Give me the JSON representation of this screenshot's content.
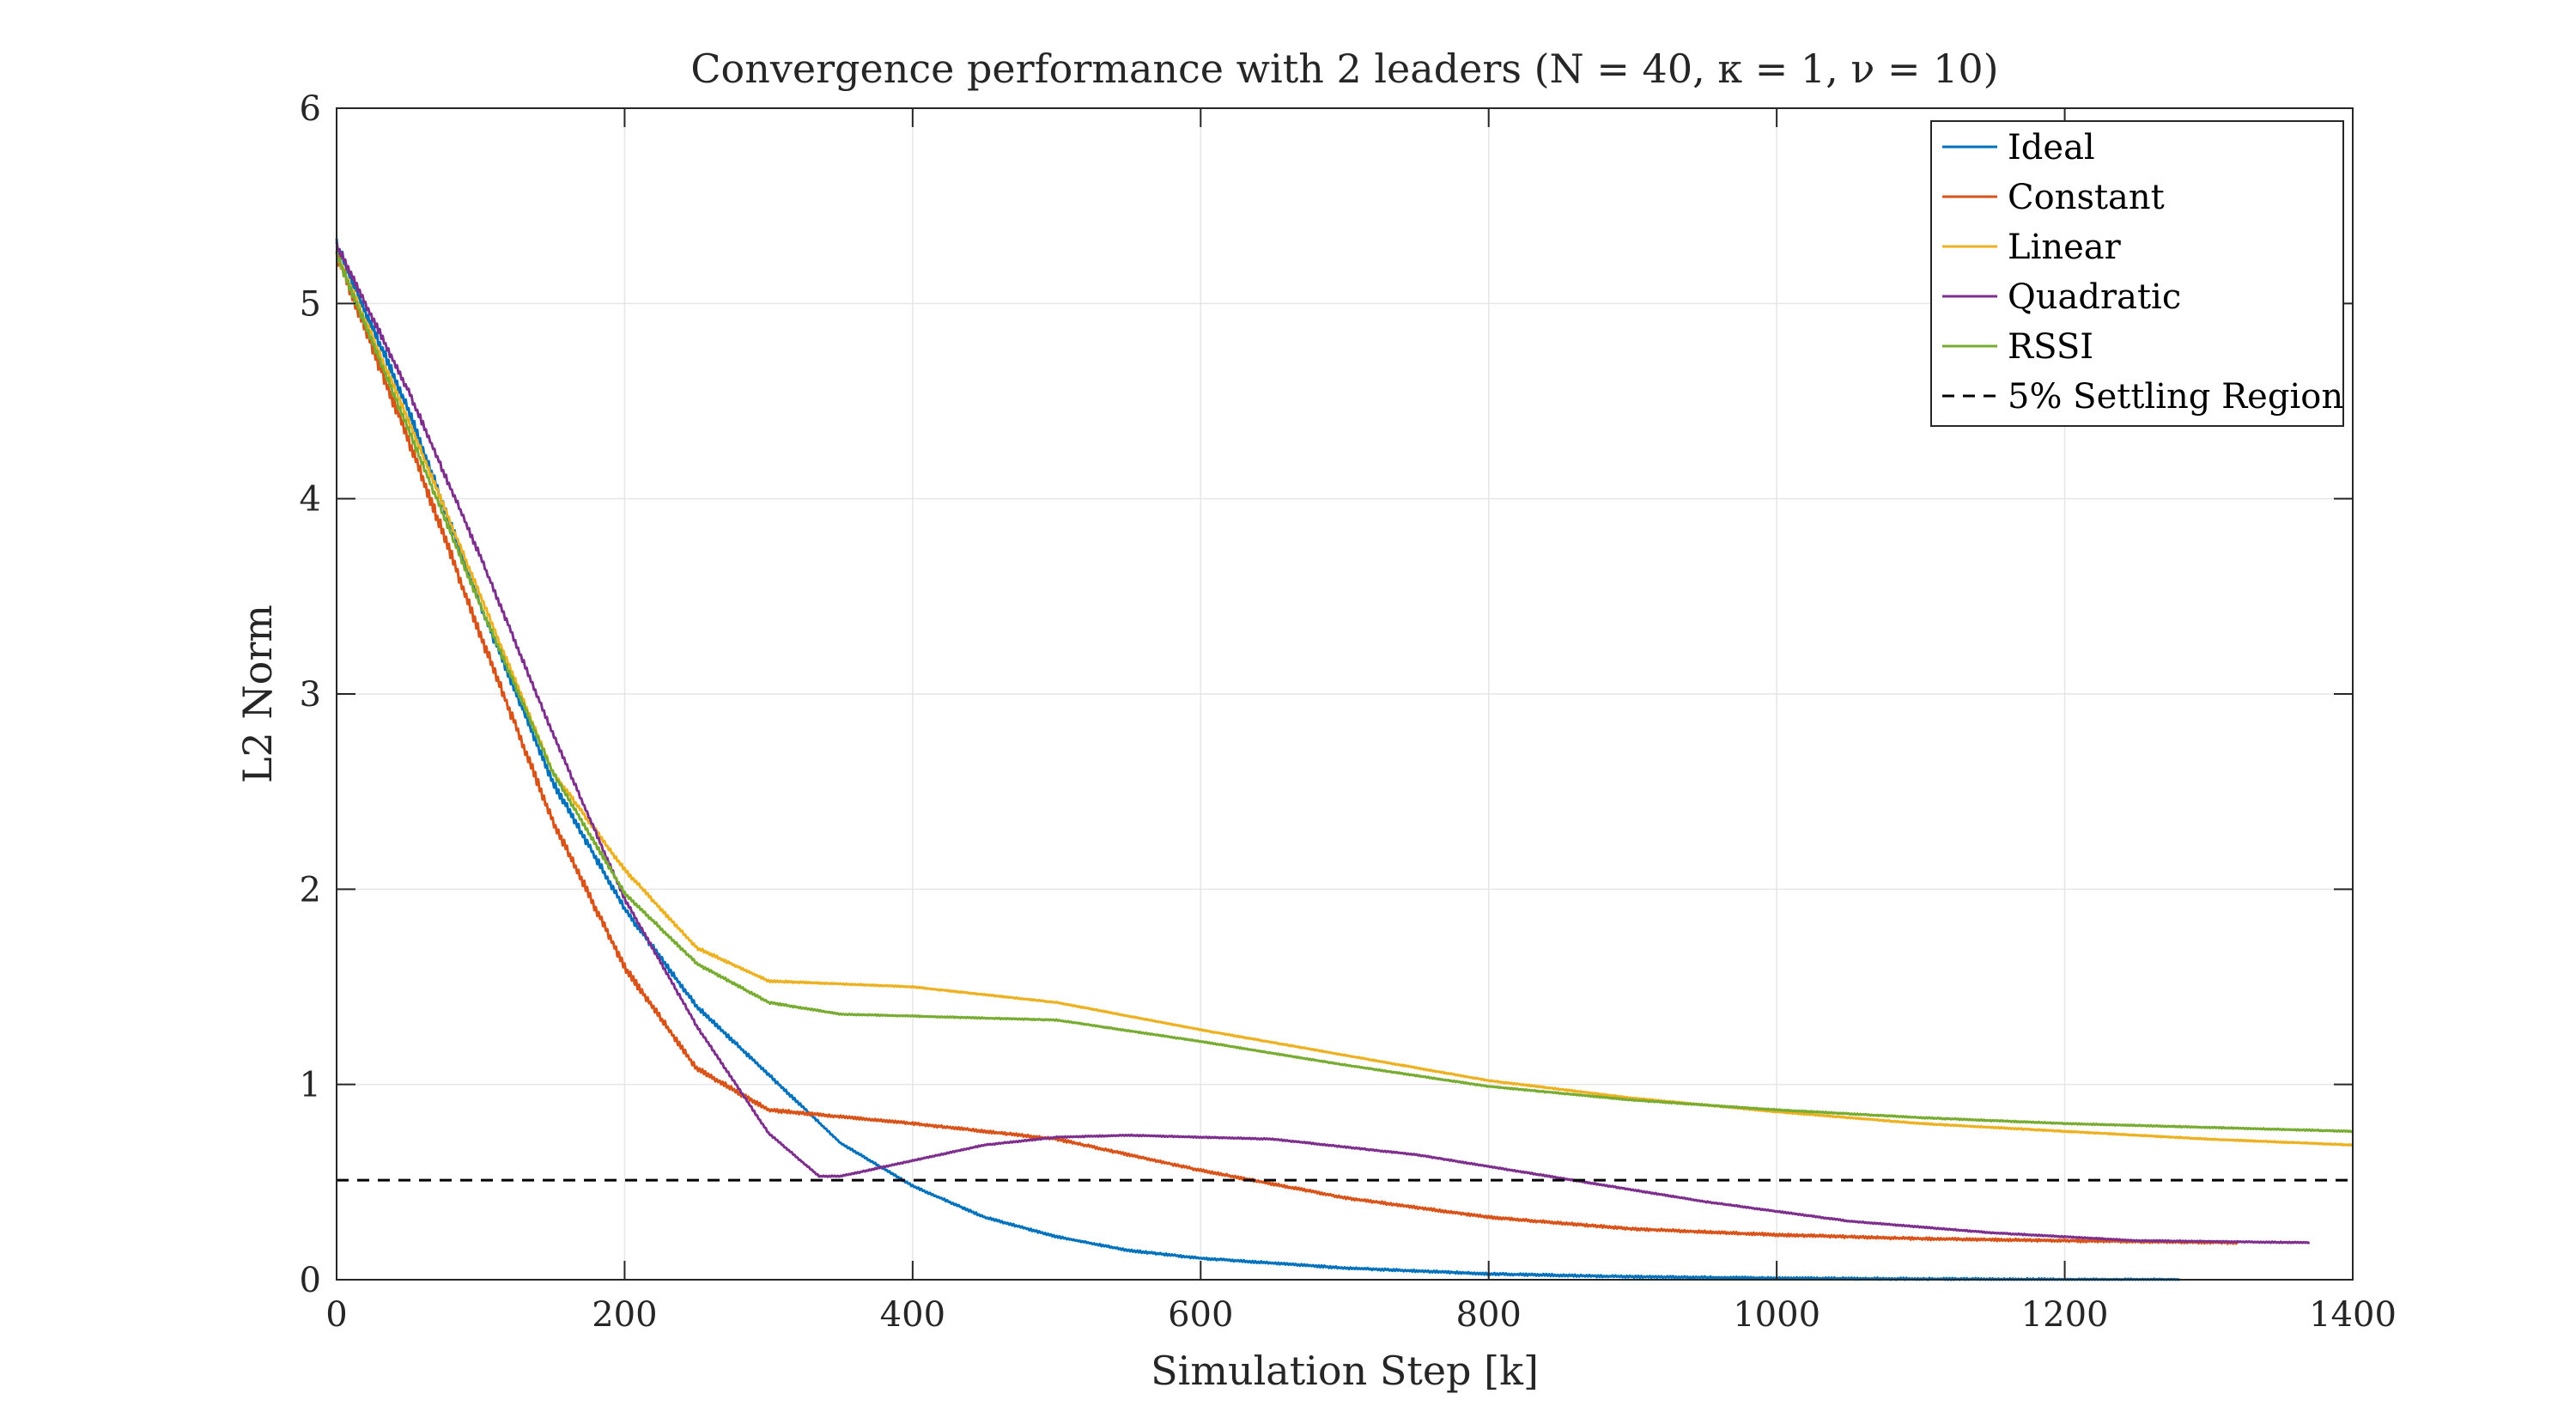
{
  "chart_data": {
    "type": "line",
    "title": "Convergence performance with 2 leaders (N = 40, κ = 1, ν = 10)",
    "xlabel": "Simulation Step [k]",
    "ylabel": "L2 Norm",
    "xlim": [
      0,
      1400
    ],
    "ylim": [
      0,
      6
    ],
    "xticks": [
      0,
      200,
      400,
      600,
      800,
      1000,
      1200,
      1400
    ],
    "yticks": [
      0,
      1,
      2,
      3,
      4,
      5,
      6
    ],
    "grid": true,
    "legend_position": "top-right",
    "series": [
      {
        "name": "Ideal",
        "color": "#0072BD",
        "noise": 0.05,
        "points": [
          [
            0,
            5.3
          ],
          [
            50,
            4.45
          ],
          [
            100,
            3.45
          ],
          [
            150,
            2.55
          ],
          [
            200,
            1.9
          ],
          [
            250,
            1.4
          ],
          [
            300,
            1.05
          ],
          [
            350,
            0.7
          ],
          [
            400,
            0.48
          ],
          [
            450,
            0.32
          ],
          [
            500,
            0.22
          ],
          [
            550,
            0.15
          ],
          [
            600,
            0.11
          ],
          [
            700,
            0.06
          ],
          [
            800,
            0.03
          ],
          [
            900,
            0.015
          ],
          [
            1000,
            0.008
          ],
          [
            1100,
            0.004
          ],
          [
            1200,
            0.001
          ],
          [
            1280,
            0.0
          ]
        ]
      },
      {
        "name": "Constant",
        "color": "#D95319",
        "noise": 0.06,
        "points": [
          [
            0,
            5.25
          ],
          [
            50,
            4.3
          ],
          [
            100,
            3.3
          ],
          [
            150,
            2.35
          ],
          [
            200,
            1.6
          ],
          [
            250,
            1.08
          ],
          [
            300,
            0.87
          ],
          [
            400,
            0.8
          ],
          [
            500,
            0.72
          ],
          [
            600,
            0.56
          ],
          [
            700,
            0.42
          ],
          [
            800,
            0.32
          ],
          [
            900,
            0.26
          ],
          [
            1000,
            0.23
          ],
          [
            1100,
            0.21
          ],
          [
            1200,
            0.2
          ],
          [
            1320,
            0.19
          ]
        ]
      },
      {
        "name": "Linear",
        "color": "#EDB120",
        "noise": 0.03,
        "points": [
          [
            0,
            5.25
          ],
          [
            50,
            4.4
          ],
          [
            100,
            3.5
          ],
          [
            150,
            2.6
          ],
          [
            200,
            2.1
          ],
          [
            250,
            1.7
          ],
          [
            300,
            1.53
          ],
          [
            400,
            1.5
          ],
          [
            500,
            1.42
          ],
          [
            600,
            1.28
          ],
          [
            700,
            1.15
          ],
          [
            800,
            1.02
          ],
          [
            900,
            0.93
          ],
          [
            1000,
            0.86
          ],
          [
            1100,
            0.8
          ],
          [
            1200,
            0.76
          ],
          [
            1300,
            0.72
          ],
          [
            1400,
            0.69
          ]
        ]
      },
      {
        "name": "Quadratic",
        "color": "#7E2F8E",
        "noise": 0.03,
        "points": [
          [
            0,
            5.3
          ],
          [
            50,
            4.55
          ],
          [
            100,
            3.7
          ],
          [
            150,
            2.8
          ],
          [
            200,
            1.95
          ],
          [
            250,
            1.3
          ],
          [
            300,
            0.75
          ],
          [
            335,
            0.53
          ],
          [
            350,
            0.53
          ],
          [
            400,
            0.61
          ],
          [
            450,
            0.69
          ],
          [
            500,
            0.73
          ],
          [
            550,
            0.74
          ],
          [
            650,
            0.72
          ],
          [
            750,
            0.64
          ],
          [
            850,
            0.52
          ],
          [
            950,
            0.4
          ],
          [
            1050,
            0.3
          ],
          [
            1150,
            0.24
          ],
          [
            1250,
            0.2
          ],
          [
            1370,
            0.19
          ]
        ]
      },
      {
        "name": "RSSI",
        "color": "#77AC30",
        "noise": 0.03,
        "points": [
          [
            0,
            5.25
          ],
          [
            50,
            4.35
          ],
          [
            100,
            3.45
          ],
          [
            150,
            2.6
          ],
          [
            200,
            1.98
          ],
          [
            250,
            1.62
          ],
          [
            300,
            1.42
          ],
          [
            350,
            1.36
          ],
          [
            400,
            1.35
          ],
          [
            500,
            1.33
          ],
          [
            600,
            1.22
          ],
          [
            700,
            1.1
          ],
          [
            800,
            0.99
          ],
          [
            900,
            0.92
          ],
          [
            1000,
            0.87
          ],
          [
            1100,
            0.83
          ],
          [
            1200,
            0.8
          ],
          [
            1300,
            0.78
          ],
          [
            1400,
            0.76
          ]
        ]
      },
      {
        "name": "5% Settling Region",
        "color": "#000000",
        "dashed": true,
        "points": [
          [
            0,
            0.51
          ],
          [
            1400,
            0.51
          ]
        ]
      }
    ]
  }
}
